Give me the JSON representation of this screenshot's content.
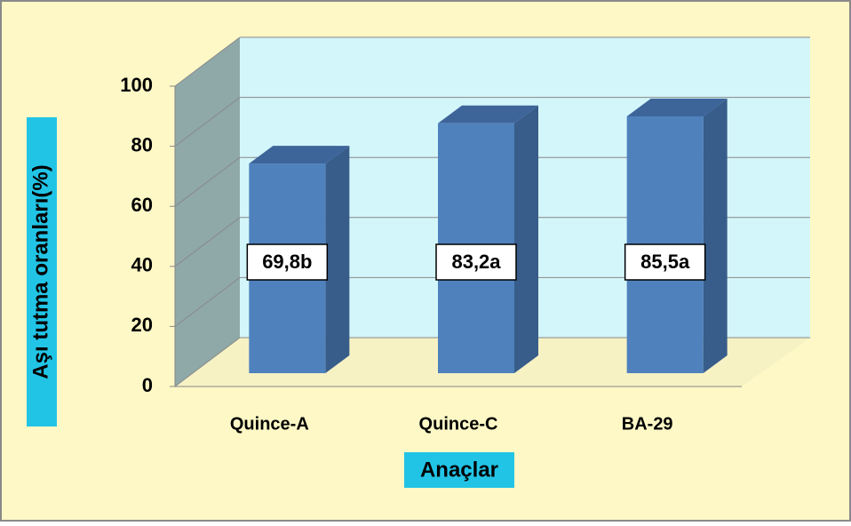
{
  "chart_data": {
    "type": "bar3d",
    "categories": [
      "Quince-A",
      "Quince-C",
      "BA-29"
    ],
    "values": [
      69.8,
      83.2,
      85.5
    ],
    "value_labels": [
      "69,8b",
      "83,2a",
      "85,5a"
    ],
    "color": "#4f81bd",
    "xlabel": "Anaçlar",
    "ylabel": "Aşı tutma oranları(%)",
    "ylim": [
      0,
      100
    ],
    "yticks": [
      0,
      20,
      40,
      60,
      80,
      100
    ],
    "grid": true
  }
}
